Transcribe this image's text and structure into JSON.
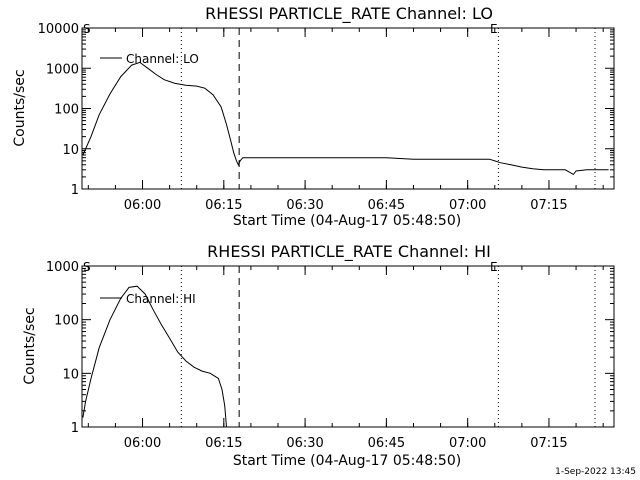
{
  "colors": {
    "background": "#ffffff",
    "foreground": "#000000"
  },
  "footer": {
    "timestamp": "1-Sep-2022 13:45"
  },
  "chart_data": [
    {
      "type": "line",
      "title": "RHESSI PARTICLE_RATE Channel: LO",
      "xlabel": "Start Time (04-Aug-17 05:48:50)",
      "ylabel": "Counts/sec",
      "yscale": "log",
      "xlim": [
        "05:48:50",
        "07:27:00"
      ],
      "ylim": [
        1,
        10000
      ],
      "x_ticks": [
        "06:00",
        "06:15",
        "06:30",
        "06:45",
        "07:00",
        "07:15"
      ],
      "y_ticks": [
        "1",
        "10",
        "100",
        "1000",
        "10000"
      ],
      "markers": {
        "start": "S",
        "end": "E"
      },
      "vertical_lines": [
        {
          "time": "06:07:10",
          "style": "dotted"
        },
        {
          "time": "06:17:50",
          "style": "dashed"
        },
        {
          "time": "07:05:40",
          "style": "dotted"
        },
        {
          "time": "07:23:30",
          "style": "dotted"
        }
      ],
      "legend": {
        "position": "top-left"
      },
      "series": [
        {
          "name": "Channel: LO",
          "x": [
            "05:49:00",
            "05:50:30",
            "05:52:00",
            "05:54:00",
            "05:56:00",
            "05:58:00",
            "05:59:30",
            "06:01:00",
            "06:02:30",
            "06:04:00",
            "06:06:00",
            "06:08:00",
            "06:10:00",
            "06:11:30",
            "06:13:00",
            "06:14:30",
            "06:15:30",
            "06:16:20",
            "06:16:50",
            "06:17:20",
            "06:17:40",
            "06:18:00",
            "06:18:30",
            "06:20:00",
            "06:25:00",
            "06:30:00",
            "06:35:00",
            "06:40:00",
            "06:45:00",
            "06:50:00",
            "06:55:00",
            "07:00:00",
            "07:03:00",
            "07:04:00",
            "07:05:00",
            "07:06:00",
            "07:08:00",
            "07:10:00",
            "07:12:00",
            "07:14:00",
            "07:15:30",
            "07:16:30",
            "07:18:00",
            "07:19:30",
            "07:20:00",
            "07:22:00",
            "07:24:00",
            "07:26:00"
          ],
          "values": [
            7,
            20,
            70,
            230,
            620,
            1200,
            1400,
            1000,
            700,
            520,
            420,
            380,
            360,
            320,
            220,
            110,
            40,
            15,
            8,
            5,
            4,
            5,
            6,
            6,
            6,
            6,
            6,
            6,
            6,
            5.5,
            5.5,
            5.5,
            5.5,
            5.5,
            5,
            4.5,
            4,
            3.5,
            3.2,
            3,
            3,
            3,
            3,
            2.3,
            2.8,
            3,
            3,
            3
          ]
        }
      ]
    },
    {
      "type": "line",
      "title": "RHESSI PARTICLE_RATE Channel: HI",
      "xlabel": "Start Time (04-Aug-17 05:48:50)",
      "ylabel": "Counts/sec",
      "yscale": "log",
      "xlim": [
        "05:48:50",
        "07:27:00"
      ],
      "ylim": [
        1,
        1000
      ],
      "x_ticks": [
        "06:00",
        "06:15",
        "06:30",
        "06:45",
        "07:00",
        "07:15"
      ],
      "y_ticks": [
        "1",
        "10",
        "100",
        "1000"
      ],
      "markers": {
        "start": "S",
        "end": "E"
      },
      "vertical_lines": [
        {
          "time": "06:07:10",
          "style": "dotted"
        },
        {
          "time": "06:17:50",
          "style": "dashed"
        },
        {
          "time": "07:05:40",
          "style": "dotted"
        },
        {
          "time": "07:23:30",
          "style": "dotted"
        }
      ],
      "legend": {
        "position": "top-left"
      },
      "series": [
        {
          "name": "Channel: HI",
          "x": [
            "05:49:00",
            "05:49:30",
            "05:50:30",
            "05:52:00",
            "05:54:00",
            "05:56:00",
            "05:57:30",
            "05:59:00",
            "06:00:30",
            "06:02:00",
            "06:03:30",
            "06:05:00",
            "06:06:30",
            "06:08:00",
            "06:09:30",
            "06:11:00",
            "06:12:30",
            "06:14:00",
            "06:14:40",
            "06:15:10",
            "06:15:30"
          ],
          "values": [
            1.5,
            3,
            8,
            30,
            100,
            250,
            400,
            420,
            300,
            150,
            80,
            45,
            25,
            17,
            13,
            11,
            10,
            8,
            5,
            2.5,
            1
          ]
        }
      ]
    }
  ]
}
